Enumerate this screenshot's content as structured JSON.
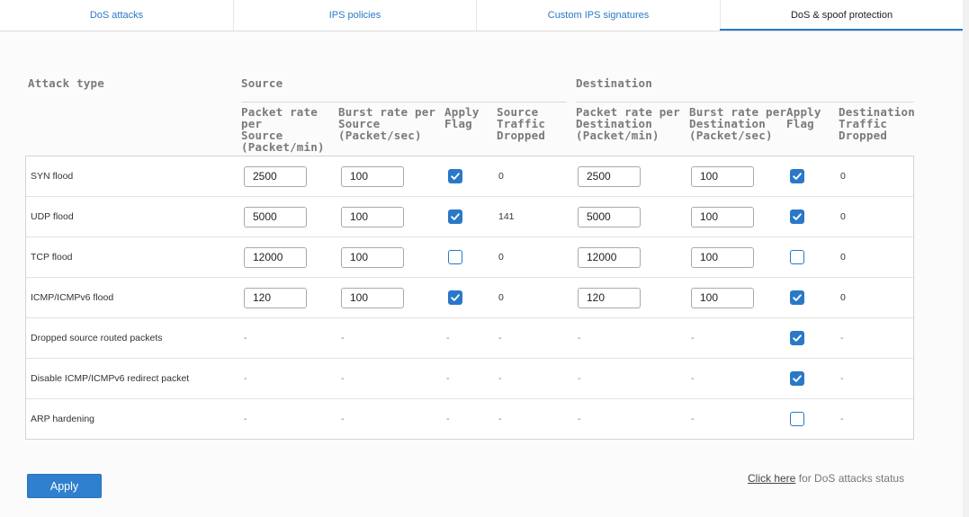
{
  "tabs": [
    {
      "label": "DoS attacks",
      "active": false
    },
    {
      "label": "IPS policies",
      "active": false
    },
    {
      "label": "Custom IPS signatures",
      "active": false
    },
    {
      "label": "DoS & spoof protection",
      "active": true
    }
  ],
  "headers": {
    "attack_type": "Attack type",
    "source": "Source",
    "destination": "Destination",
    "src_packet_rate": [
      "Packet rate",
      "per",
      "Source",
      "(Packet/min)"
    ],
    "src_burst_rate": [
      "Burst rate per",
      "Source",
      "(Packet/sec)"
    ],
    "src_apply_flag": [
      "Apply",
      "Flag"
    ],
    "src_traffic_dropped": [
      "Source",
      "Traffic",
      "Dropped"
    ],
    "dst_packet_rate": [
      "Packet rate per",
      "Destination",
      "(Packet/min)"
    ],
    "dst_burst_rate": [
      "Burst rate per",
      "Destination",
      "(Packet/sec)"
    ],
    "dst_apply_flag": [
      "Apply",
      "Flag"
    ],
    "dst_traffic_dropped": [
      "Destination",
      "Traffic",
      "Dropped"
    ]
  },
  "rows": [
    {
      "attack": "SYN flood",
      "src_rate": "2500",
      "src_burst": "100",
      "src_flag": true,
      "src_dropped": "0",
      "dst_rate": "2500",
      "dst_burst": "100",
      "dst_flag": true,
      "dst_dropped": "0"
    },
    {
      "attack": "UDP flood",
      "src_rate": "5000",
      "src_burst": "100",
      "src_flag": true,
      "src_dropped": "141",
      "dst_rate": "5000",
      "dst_burst": "100",
      "dst_flag": true,
      "dst_dropped": "0"
    },
    {
      "attack": "TCP flood",
      "src_rate": "12000",
      "src_burst": "100",
      "src_flag": false,
      "src_dropped": "0",
      "dst_rate": "12000",
      "dst_burst": "100",
      "dst_flag": false,
      "dst_dropped": "0"
    },
    {
      "attack": "ICMP/ICMPv6 flood",
      "src_rate": "120",
      "src_burst": "100",
      "src_flag": true,
      "src_dropped": "0",
      "dst_rate": "120",
      "dst_burst": "100",
      "dst_flag": true,
      "dst_dropped": "0"
    },
    {
      "attack": "Dropped source routed packets",
      "src_rate": "-",
      "src_burst": "-",
      "src_flag": "-",
      "src_dropped": "-",
      "dst_rate": "-",
      "dst_burst": "-",
      "dst_flag": true,
      "dst_dropped": "-"
    },
    {
      "attack": "Disable ICMP/ICMPv6 redirect packet",
      "src_rate": "-",
      "src_burst": "-",
      "src_flag": "-",
      "src_dropped": "-",
      "dst_rate": "-",
      "dst_burst": "-",
      "dst_flag": true,
      "dst_dropped": "-"
    },
    {
      "attack": "ARP hardening",
      "src_rate": "-",
      "src_burst": "-",
      "src_flag": "-",
      "src_dropped": "-",
      "dst_rate": "-",
      "dst_burst": "-",
      "dst_flag": false,
      "dst_dropped": "-"
    }
  ],
  "footer": {
    "apply_label": "Apply",
    "status_link": "Click here",
    "status_text": " for DoS attacks status"
  },
  "colors": {
    "accent": "#2a78c7",
    "button": "#2f80ce",
    "header_text": "#7a7a7a"
  }
}
